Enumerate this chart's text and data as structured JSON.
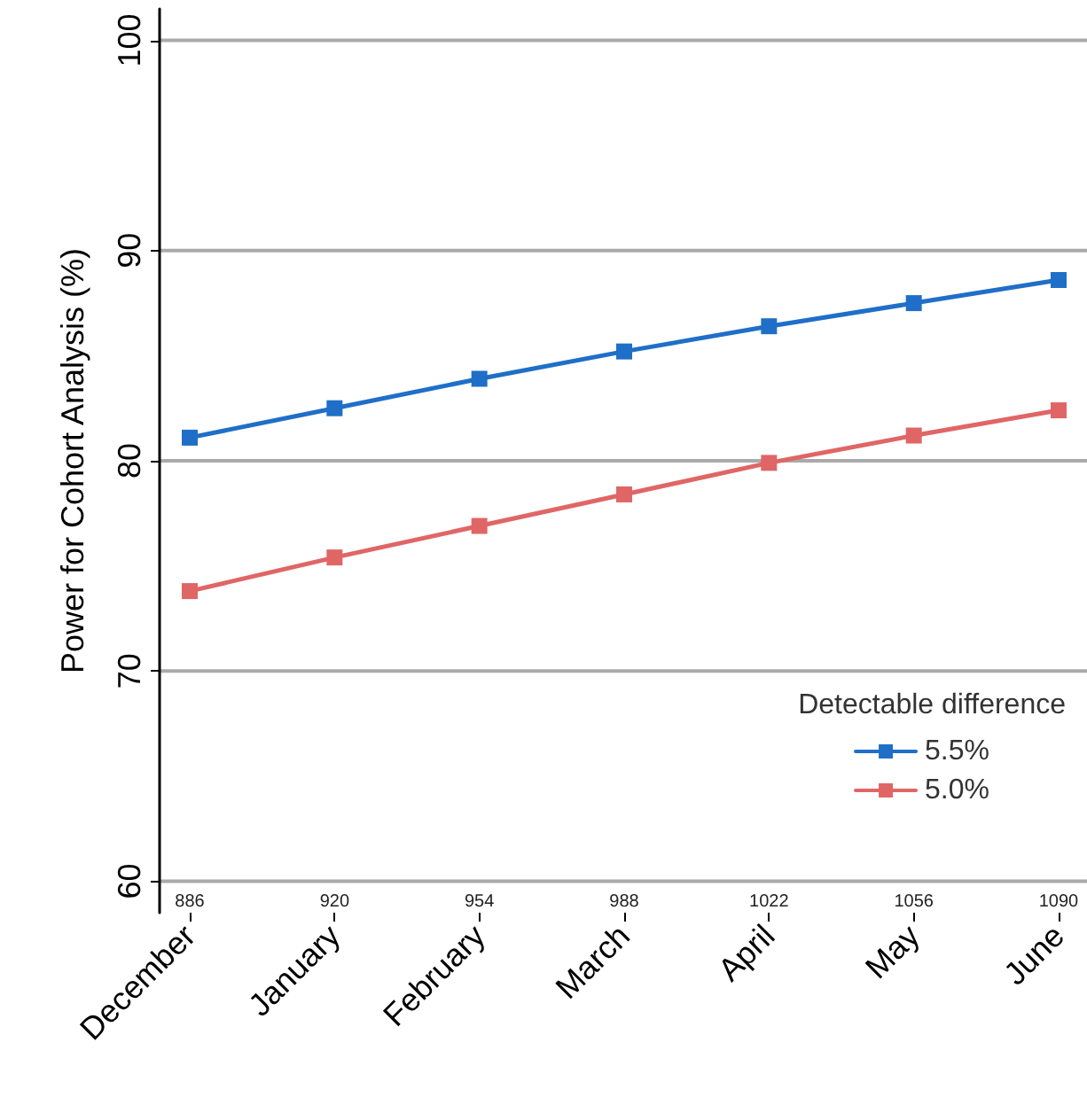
{
  "chart_data": {
    "type": "line",
    "ylabel": "Power for Cohort Analysis (%)",
    "legend_title": "Detectable difference",
    "categories": [
      "December",
      "January",
      "February",
      "March",
      "April",
      "May",
      "June"
    ],
    "series": [
      {
        "name": "5.5%",
        "color": "#1f6fc8",
        "values": [
          81.1,
          82.5,
          83.9,
          85.2,
          86.4,
          87.5,
          88.6
        ]
      },
      {
        "name": "5.0%",
        "color": "#e06666",
        "values": [
          73.8,
          75.4,
          76.9,
          78.4,
          79.9,
          81.2,
          82.4
        ]
      }
    ],
    "annotations": [
      "886",
      "920",
      "954",
      "988",
      "1022",
      "1056",
      "1090"
    ],
    "ylim": [
      58.5,
      101.5
    ],
    "yticks": [
      60,
      70,
      80,
      90,
      100
    ],
    "grid": "y",
    "legend": "bottom right",
    "marker": "square",
    "line_style": "solid"
  }
}
